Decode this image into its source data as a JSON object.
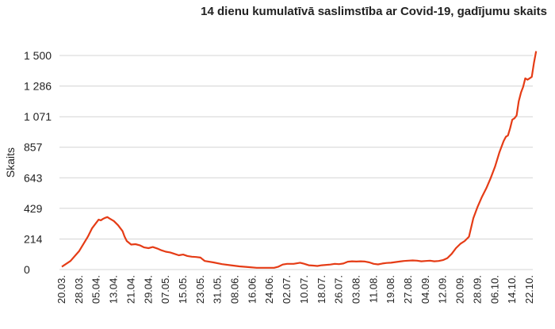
{
  "chart_data": {
    "type": "line",
    "title": "14 dienu kumulatīvā saslimstība ar Covid-19, gadījumu skaits",
    "ylabel": "Skaits",
    "xlabel": "",
    "ylim": [
      0,
      1500
    ],
    "yticks": [
      "0",
      "214",
      "429",
      "643",
      "857",
      "1 071",
      "1 286",
      "1 500"
    ],
    "ytick_values": [
      0,
      214,
      429,
      643,
      857,
      1071,
      1286,
      1500
    ],
    "xticks": [
      "20.03.",
      "28.03.",
      "05.04.",
      "13.04.",
      "21.04.",
      "29.04.",
      "07.05.",
      "15.05.",
      "23.05.",
      "31.05.",
      "08.06.",
      "16.06.",
      "24.06.",
      "02.07.",
      "10.07.",
      "18.07.",
      "26.07.",
      "03.08.",
      "11.08.",
      "19.08.",
      "27.08.",
      "04.09.",
      "12.09.",
      "20.09.",
      "28.09.",
      "06.10.",
      "14.10.",
      "22.10."
    ],
    "grid": true,
    "line_color": "#e53c16",
    "series": [
      {
        "values": [
          [
            0,
            20
          ],
          [
            4,
            60
          ],
          [
            8,
            130
          ],
          [
            12,
            230
          ],
          [
            14,
            290
          ],
          [
            16,
            330
          ],
          [
            17,
            350
          ],
          [
            18,
            345
          ],
          [
            19,
            355
          ],
          [
            20,
            362
          ],
          [
            21,
            368
          ],
          [
            22,
            358
          ],
          [
            24,
            340
          ],
          [
            26,
            310
          ],
          [
            28,
            270
          ],
          [
            29,
            230
          ],
          [
            30,
            200
          ],
          [
            32,
            175
          ],
          [
            34,
            178
          ],
          [
            36,
            170
          ],
          [
            38,
            155
          ],
          [
            40,
            150
          ],
          [
            42,
            158
          ],
          [
            44,
            148
          ],
          [
            46,
            135
          ],
          [
            48,
            125
          ],
          [
            50,
            120
          ],
          [
            52,
            110
          ],
          [
            54,
            100
          ],
          [
            56,
            105
          ],
          [
            58,
            95
          ],
          [
            60,
            90
          ],
          [
            62,
            88
          ],
          [
            64,
            84
          ],
          [
            66,
            60
          ],
          [
            70,
            50
          ],
          [
            74,
            38
          ],
          [
            78,
            30
          ],
          [
            82,
            22
          ],
          [
            86,
            17
          ],
          [
            90,
            12
          ],
          [
            94,
            12
          ],
          [
            98,
            12
          ],
          [
            100,
            20
          ],
          [
            102,
            35
          ],
          [
            104,
            40
          ],
          [
            107,
            40
          ],
          [
            110,
            48
          ],
          [
            112,
            40
          ],
          [
            114,
            30
          ],
          [
            116,
            28
          ],
          [
            118,
            25
          ],
          [
            120,
            30
          ],
          [
            124,
            35
          ],
          [
            126,
            40
          ],
          [
            128,
            38
          ],
          [
            130,
            42
          ],
          [
            132,
            55
          ],
          [
            134,
            58
          ],
          [
            136,
            56
          ],
          [
            138,
            58
          ],
          [
            140,
            56
          ],
          [
            142,
            50
          ],
          [
            144,
            40
          ],
          [
            146,
            36
          ],
          [
            148,
            42
          ],
          [
            150,
            46
          ],
          [
            152,
            48
          ],
          [
            154,
            52
          ],
          [
            156,
            56
          ],
          [
            158,
            60
          ],
          [
            160,
            62
          ],
          [
            162,
            64
          ],
          [
            164,
            62
          ],
          [
            166,
            58
          ],
          [
            168,
            60
          ],
          [
            170,
            62
          ],
          [
            172,
            58
          ],
          [
            174,
            60
          ],
          [
            176,
            66
          ],
          [
            178,
            80
          ],
          [
            180,
            110
          ],
          [
            182,
            150
          ],
          [
            184,
            180
          ],
          [
            186,
            200
          ],
          [
            188,
            230
          ],
          [
            190,
            360
          ],
          [
            192,
            440
          ],
          [
            194,
            510
          ],
          [
            196,
            570
          ],
          [
            198,
            640
          ],
          [
            200,
            720
          ],
          [
            202,
            820
          ],
          [
            204,
            900
          ],
          [
            205,
            930
          ],
          [
            206,
            940
          ],
          [
            207,
            990
          ],
          [
            208,
            1050
          ],
          [
            209,
            1060
          ],
          [
            210,
            1080
          ],
          [
            211,
            1180
          ],
          [
            212,
            1240
          ],
          [
            213,
            1280
          ],
          [
            214,
            1340
          ],
          [
            215,
            1330
          ],
          [
            216,
            1340
          ],
          [
            217,
            1350
          ],
          [
            218,
            1450
          ],
          [
            219,
            1530
          ]
        ]
      }
    ]
  }
}
